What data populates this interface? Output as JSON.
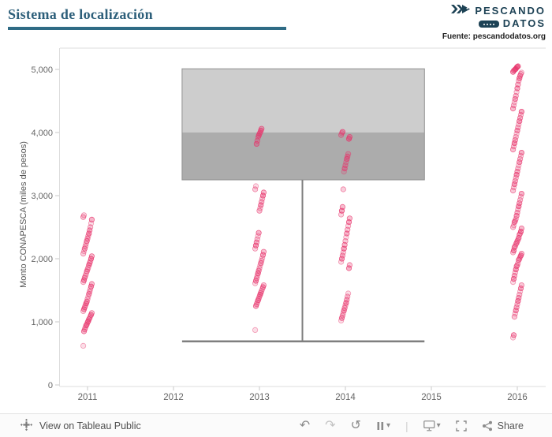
{
  "header": {
    "title": "Sistema de localización",
    "brand": {
      "line1": "PESCANDO",
      "line2": "DATOS"
    },
    "source": "Fuente: pescandodatos.org"
  },
  "toolbar": {
    "view_label": "View on Tableau Public",
    "share_label": "Share",
    "icons": {
      "undo": "↶",
      "redo": "↷",
      "revert": "↺",
      "caret": "▾",
      "separator": "|"
    }
  },
  "chart_data": {
    "type": "scatter",
    "title": "Sistema de localización",
    "xlabel": "",
    "ylabel": "Monto CONAPESCA (miles de pesos)",
    "x_ticks": [
      "2011",
      "2012",
      "2013",
      "2014",
      "2015",
      "2016"
    ],
    "y_ticks": [
      0,
      1000,
      2000,
      3000,
      4000,
      5000
    ],
    "y_tick_labels": [
      "0",
      "1,000",
      "2,000",
      "3,000",
      "4,000",
      "5,000"
    ],
    "ylim": [
      0,
      5300
    ],
    "grid": false,
    "legend": false,
    "point_color": "#e7336b",
    "series": [
      {
        "name": "2011",
        "x": 2011,
        "values": [
          620,
          850,
          880,
          910,
          940,
          960,
          990,
          1010,
          1040,
          1060,
          1090,
          1110,
          1140,
          1170,
          1200,
          1230,
          1260,
          1290,
          1320,
          1360,
          1400,
          1440,
          1480,
          1520,
          1560,
          1600,
          1630,
          1660,
          1700,
          1730,
          1760,
          1800,
          1830,
          1860,
          1900,
          1930,
          1960,
          2000,
          2040,
          2080,
          2120,
          2160,
          2200,
          2240,
          2280,
          2320,
          2360,
          2400,
          2450,
          2500,
          2560,
          2620,
          2660,
          2690
        ]
      },
      {
        "name": "2013",
        "x": 2013,
        "values": [
          870,
          1250,
          1280,
          1310,
          1340,
          1370,
          1400,
          1430,
          1460,
          1490,
          1520,
          1550,
          1580,
          1610,
          1650,
          1690,
          1730,
          1770,
          1810,
          1850,
          1890,
          1930,
          1970,
          2010,
          2060,
          2110,
          2160,
          2210,
          2260,
          2310,
          2360,
          2410,
          2760,
          2800,
          2850,
          2900,
          2950,
          3000,
          3050,
          3100,
          3150,
          3820,
          3870,
          3920,
          3950,
          3980,
          4000,
          4030,
          4060
        ]
      },
      {
        "name": "2014",
        "x": 2014,
        "values": [
          1020,
          1060,
          1100,
          1140,
          1180,
          1220,
          1260,
          1300,
          1350,
          1400,
          1450,
          1850,
          1900,
          1950,
          2000,
          2050,
          2100,
          2160,
          2220,
          2280,
          2340,
          2400,
          2460,
          2520,
          2580,
          2640,
          2700,
          2760,
          2820,
          3100,
          3380,
          3430,
          3480,
          3530,
          3580,
          3620,
          3660,
          3900,
          3930,
          3960,
          3990,
          4010
        ]
      },
      {
        "name": "2016",
        "x": 2016,
        "values": [
          750,
          790,
          1080,
          1130,
          1180,
          1230,
          1280,
          1330,
          1380,
          1430,
          1480,
          1530,
          1580,
          1630,
          1680,
          1730,
          1780,
          1830,
          1880,
          1900,
          1930,
          1980,
          2000,
          2030,
          2050,
          2080,
          2100,
          2130,
          2180,
          2200,
          2230,
          2250,
          2280,
          2300,
          2330,
          2380,
          2400,
          2430,
          2480,
          2500,
          2530,
          2580,
          2600,
          2630,
          2680,
          2730,
          2780,
          2830,
          2880,
          2930,
          2980,
          3030,
          3080,
          3130,
          3180,
          3230,
          3280,
          3330,
          3380,
          3430,
          3480,
          3530,
          3580,
          3630,
          3680,
          3730,
          3780,
          3830,
          3880,
          3930,
          3980,
          4030,
          4080,
          4130,
          4180,
          4230,
          4280,
          4330,
          4380,
          4430,
          4480,
          4530,
          4580,
          4640,
          4700,
          4760,
          4820,
          4860,
          4900,
          4930,
          4950,
          4960,
          4980,
          4990,
          5000,
          5010,
          5030,
          5040,
          5050
        ]
      }
    ],
    "boxplot": {
      "x_center": 2013.5,
      "x_span": [
        2012.1,
        2014.92
      ],
      "whisker_low": 690,
      "q1": 3250,
      "median": 4000,
      "q3": 5010,
      "upper_fill": "#c9c9c9",
      "lower_fill": "#a8a8a8",
      "line_color": "#7f7f7f",
      "border_color": "#8f8f8f"
    }
  }
}
